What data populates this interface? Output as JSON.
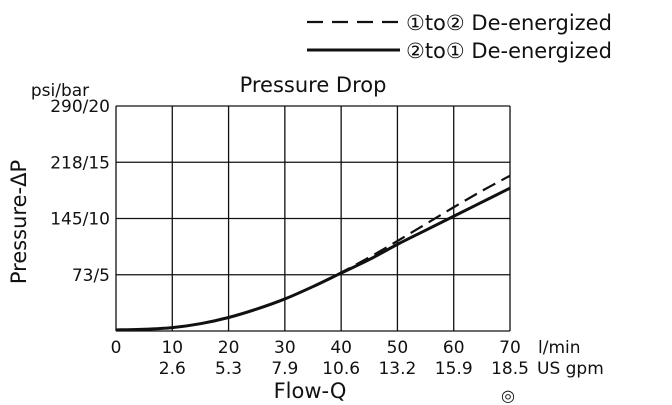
{
  "chart_data": {
    "type": "line",
    "title": "Pressure Drop",
    "xlabel": "Flow-Q",
    "ylabel": "Pressure-ΔP",
    "y_unit_label": "psi/bar",
    "x_unit_primary": "l/min",
    "x_unit_secondary": "US gpm",
    "xlim": [
      0,
      70
    ],
    "ylim": [
      0,
      20
    ],
    "grid": true,
    "legend_position": "top-right",
    "x_ticks_primary": [
      "0",
      "10",
      "20",
      "30",
      "40",
      "50",
      "60",
      "70"
    ],
    "x_ticks_secondary": [
      "2.6",
      "5.3",
      "7.9",
      "10.6",
      "13.2",
      "15.9",
      "18.5"
    ],
    "y_ticks": [
      "73/5",
      "145/10",
      "218/15",
      "290/20"
    ],
    "series": [
      {
        "name": "①to② De-energized",
        "style": "dashed",
        "x": [
          0,
          5,
          10,
          15,
          20,
          25,
          30,
          35,
          40,
          45,
          50,
          55,
          60,
          65,
          70
        ],
        "y": [
          0.1,
          0.15,
          0.3,
          0.65,
          1.2,
          1.95,
          2.85,
          3.95,
          5.2,
          6.55,
          8.0,
          9.5,
          11.0,
          12.45,
          13.8
        ]
      },
      {
        "name": "②to① De-energized",
        "style": "solid",
        "x": [
          0,
          5,
          10,
          15,
          20,
          25,
          30,
          35,
          40,
          45,
          50,
          55,
          60,
          65,
          70
        ],
        "y": [
          0.1,
          0.15,
          0.3,
          0.65,
          1.2,
          1.95,
          2.85,
          3.95,
          5.15,
          6.35,
          7.7,
          8.95,
          10.2,
          11.45,
          12.7
        ]
      }
    ],
    "footnote_symbol": "◎"
  }
}
